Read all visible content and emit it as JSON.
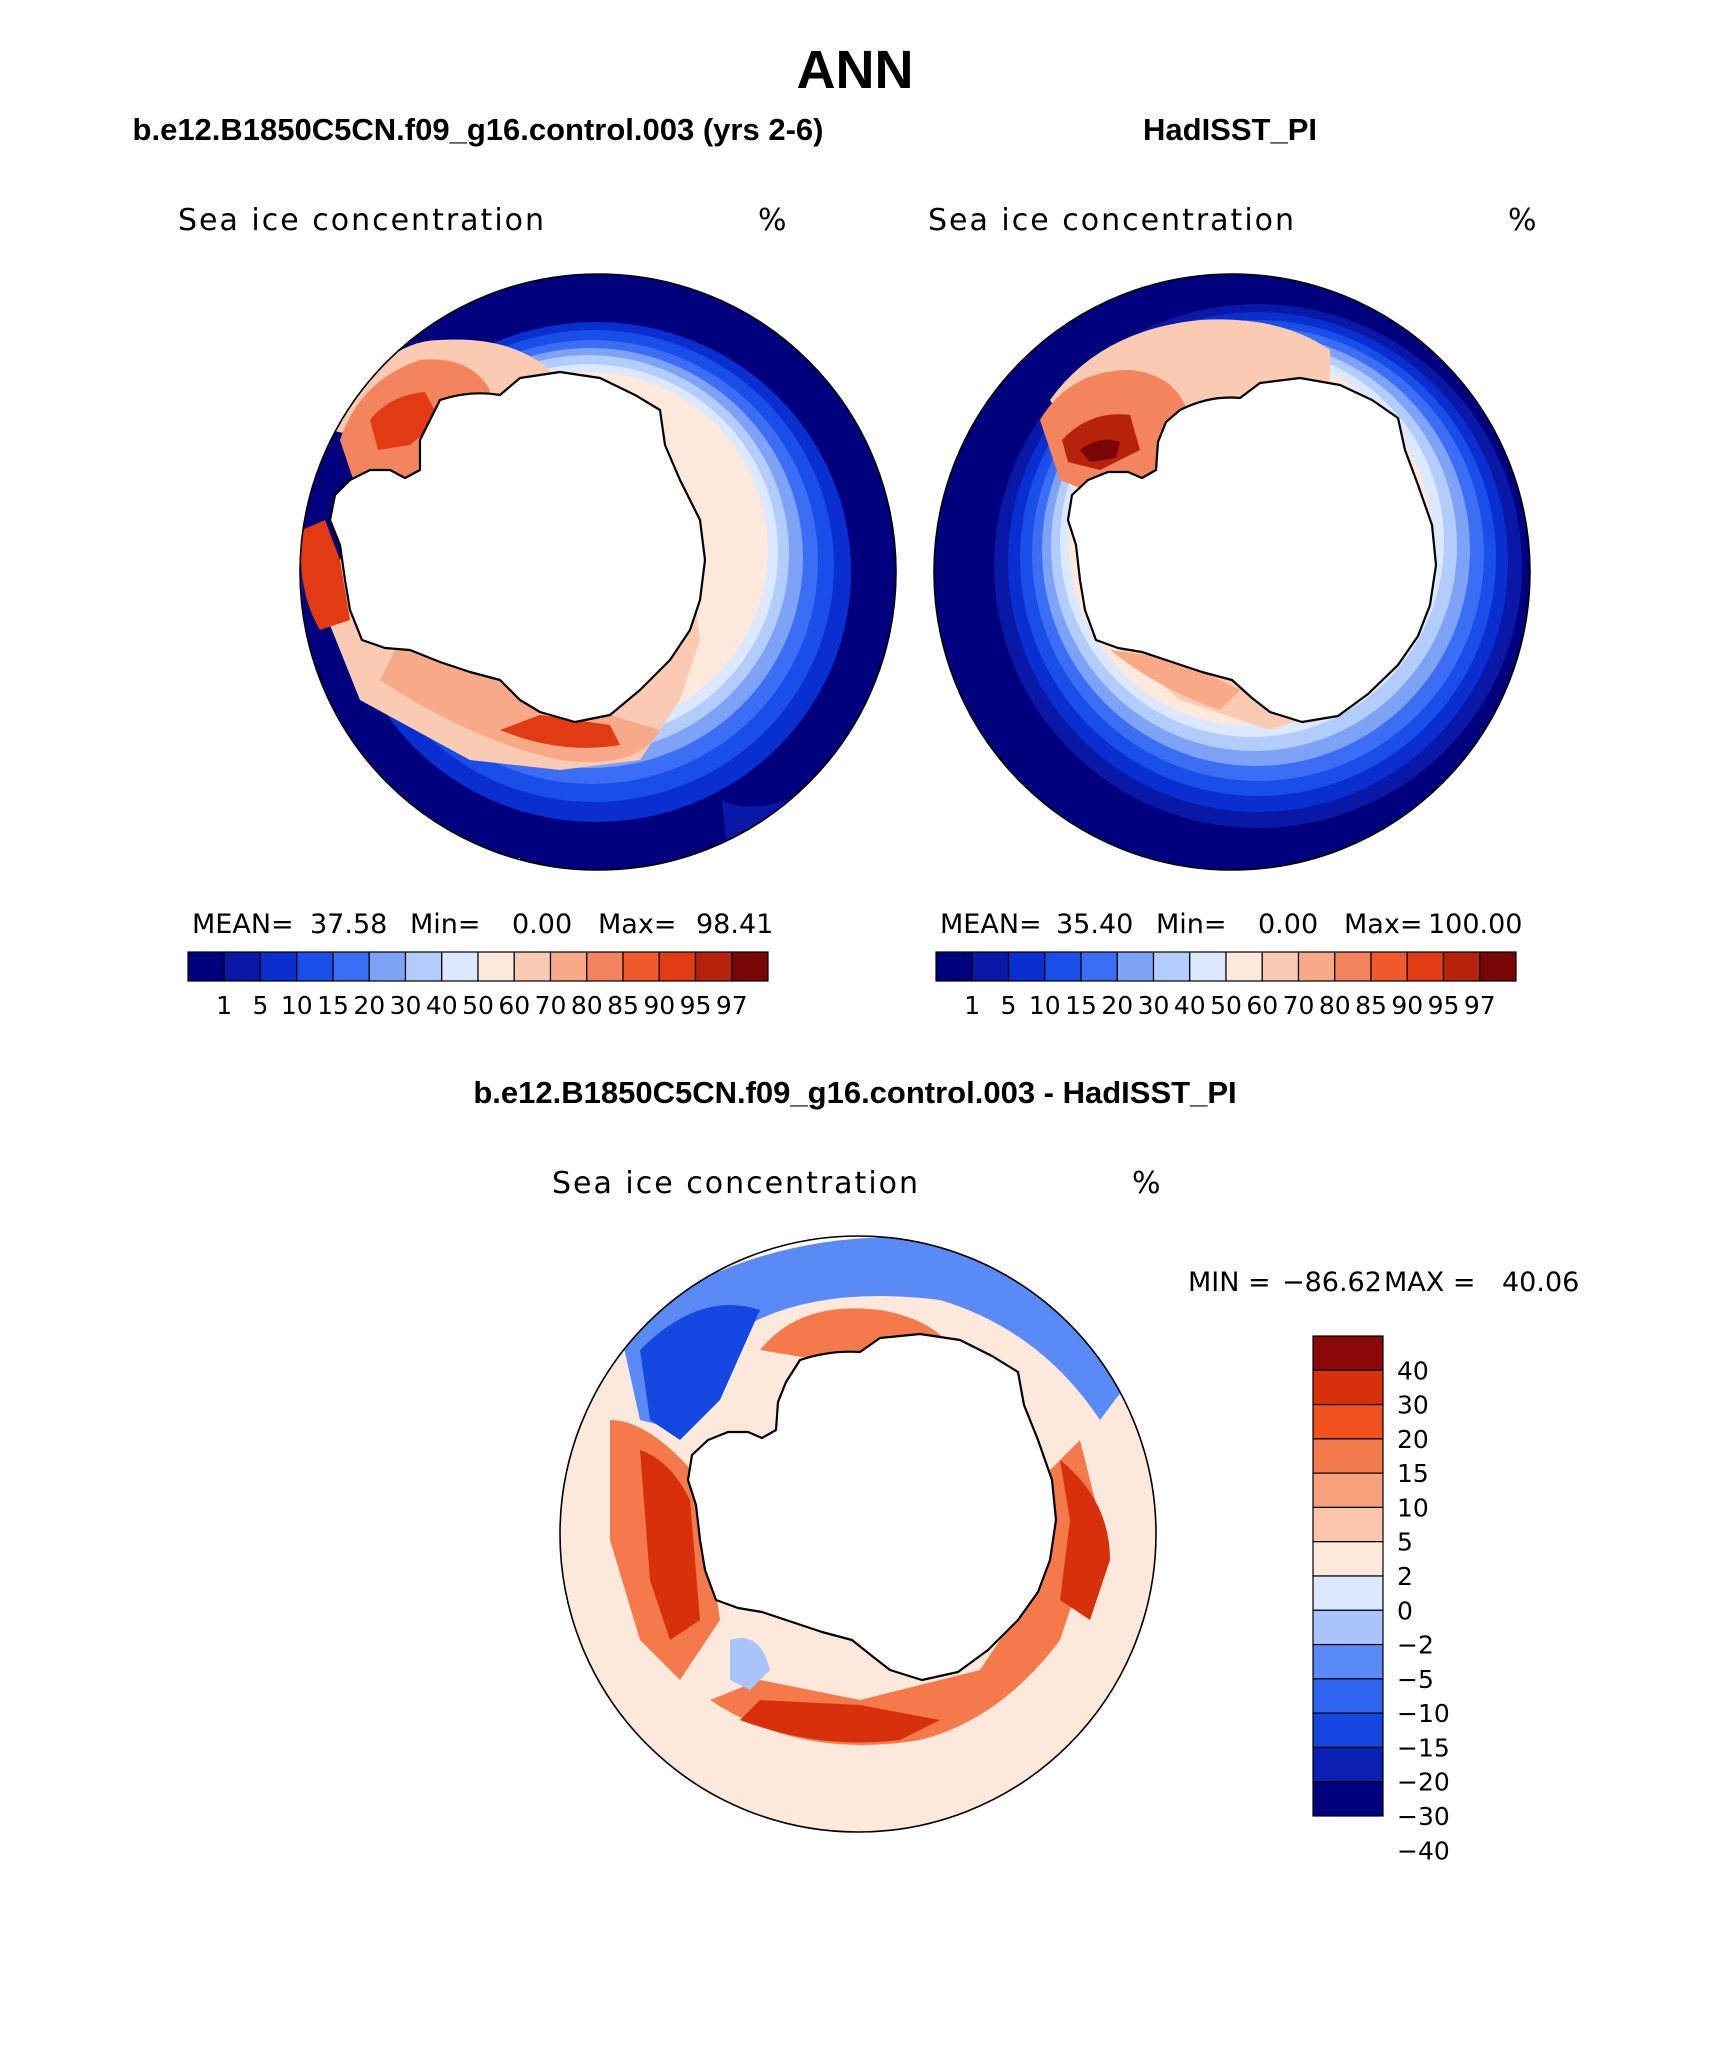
{
  "figure": {
    "title": "ANN",
    "colors": {
      "seq": [
        "#00007f",
        "#0a18a8",
        "#0a2fd0",
        "#1a4ee8",
        "#3b6ef4",
        "#7ea2f6",
        "#b2ccfb",
        "#dbe8fd",
        "#fde8dc",
        "#fbcab3",
        "#f7a988",
        "#f4845e",
        "#f25a2e",
        "#e23a12",
        "#b7220a",
        "#7a0505"
      ],
      "div": [
        "#00007f",
        "#0a20b3",
        "#1448e0",
        "#2e64f0",
        "#5a8af5",
        "#a8c4fa",
        "#dbe8fd",
        "#fde8dc",
        "#fbc6ac",
        "#f7a07c",
        "#f47a4c",
        "#f2521e",
        "#d8300a",
        "#8a0808"
      ]
    },
    "panels": [
      {
        "id": "model",
        "case_title": "b.e12.B1850C5CN.f09_g16.control.003 (yrs 2-6)",
        "variable": "Sea ice concentration",
        "units": "%",
        "stats": {
          "mean_label": "MEAN=",
          "mean": "37.58",
          "min_label": "Min=",
          "min": "0.00",
          "max_label": "Max=",
          "max": "98.41"
        },
        "levels": [
          "1",
          "5",
          "10",
          "15",
          "20",
          "30",
          "40",
          "50",
          "60",
          "70",
          "80",
          "85",
          "90",
          "95",
          "97"
        ]
      },
      {
        "id": "obs",
        "case_title": "HadISST_PI",
        "variable": "Sea ice concentration",
        "units": "%",
        "stats": {
          "mean_label": "MEAN=",
          "mean": "35.40",
          "min_label": "Min=",
          "min": "0.00",
          "max_label": "Max=",
          "max": "100.00"
        },
        "levels": [
          "1",
          "5",
          "10",
          "15",
          "20",
          "30",
          "40",
          "50",
          "60",
          "70",
          "80",
          "85",
          "90",
          "95",
          "97"
        ]
      },
      {
        "id": "diff",
        "case_title": "b.e12.B1850C5CN.f09_g16.control.003 - HadISST_PI",
        "variable": "Sea ice concentration",
        "units": "%",
        "stats": {
          "min_label": "MIN =",
          "min": "−86.62",
          "max_label": "MAX =",
          "max": "40.06"
        },
        "levels": [
          "40",
          "30",
          "20",
          "15",
          "10",
          "5",
          "2",
          "0",
          "−2",
          "−5",
          "−10",
          "−15",
          "−20",
          "−30",
          "−40"
        ]
      }
    ]
  }
}
